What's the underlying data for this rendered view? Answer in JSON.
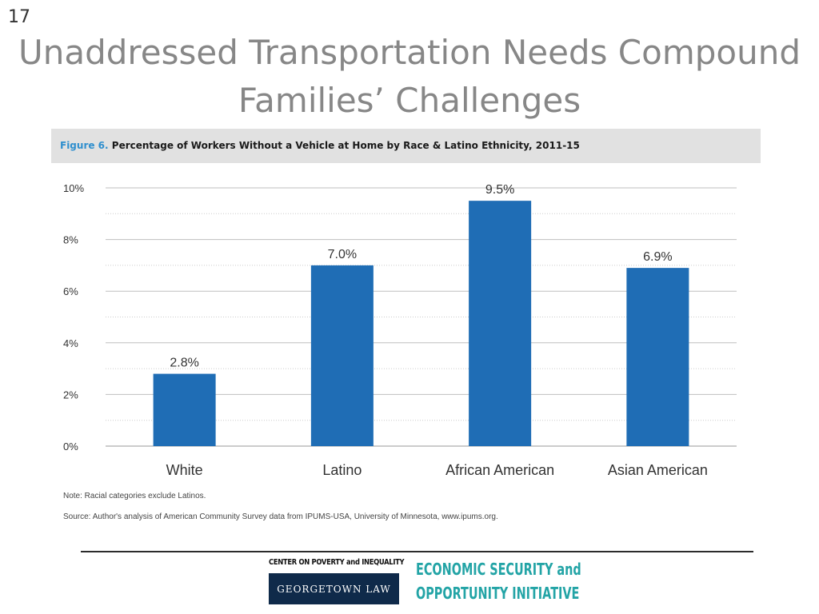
{
  "slide": {
    "number": "17",
    "title_line1": "Unaddressed Transportation Needs Compound",
    "title_line2": "Families’ Challenges"
  },
  "figure": {
    "label": "Figure 6.",
    "caption": "Percentage of Workers Without a Vehicle at Home by Race & Latino Ethnicity, 2011-15",
    "note": "Note: Racial categories exclude Latinos.",
    "source": "Source: Author's analysis of American Community Survey data from IPUMS-USA, University of Minnesota, www.ipums.org."
  },
  "chart_data": {
    "type": "bar",
    "title": "Percentage of Workers Without a Vehicle at Home by Race & Latino Ethnicity, 2011-15",
    "categories": [
      "White",
      "Latino",
      "African American",
      "Asian American"
    ],
    "values": [
      2.8,
      7.0,
      9.5,
      6.9
    ],
    "data_labels": [
      "2.8%",
      "7.0%",
      "9.5%",
      "6.9%"
    ],
    "yticks": [
      0,
      2,
      4,
      6,
      8,
      10
    ],
    "ytick_labels": [
      "0%",
      "2%",
      "4%",
      "6%",
      "8%",
      "10%"
    ],
    "ylim": [
      0,
      10
    ],
    "xlabel": "",
    "ylabel": "",
    "grid": true,
    "legend": false,
    "bar_color": "#1f6db5"
  },
  "footer": {
    "cpi_top": "CENTER ON POVERTY and INEQUALITY",
    "cpi_bottom": "GEORGETOWN LAW",
    "esoi_line1": "ECONOMIC SECURITY and",
    "esoi_line2": "OPPORTUNITY INITIATIVE"
  },
  "colors": {
    "title": "#878787",
    "figure_label": "#2f8fce",
    "header_bg": "#e1e1e1",
    "logo_navy": "#0f2a4a",
    "logo_teal": "#23a4a6"
  }
}
